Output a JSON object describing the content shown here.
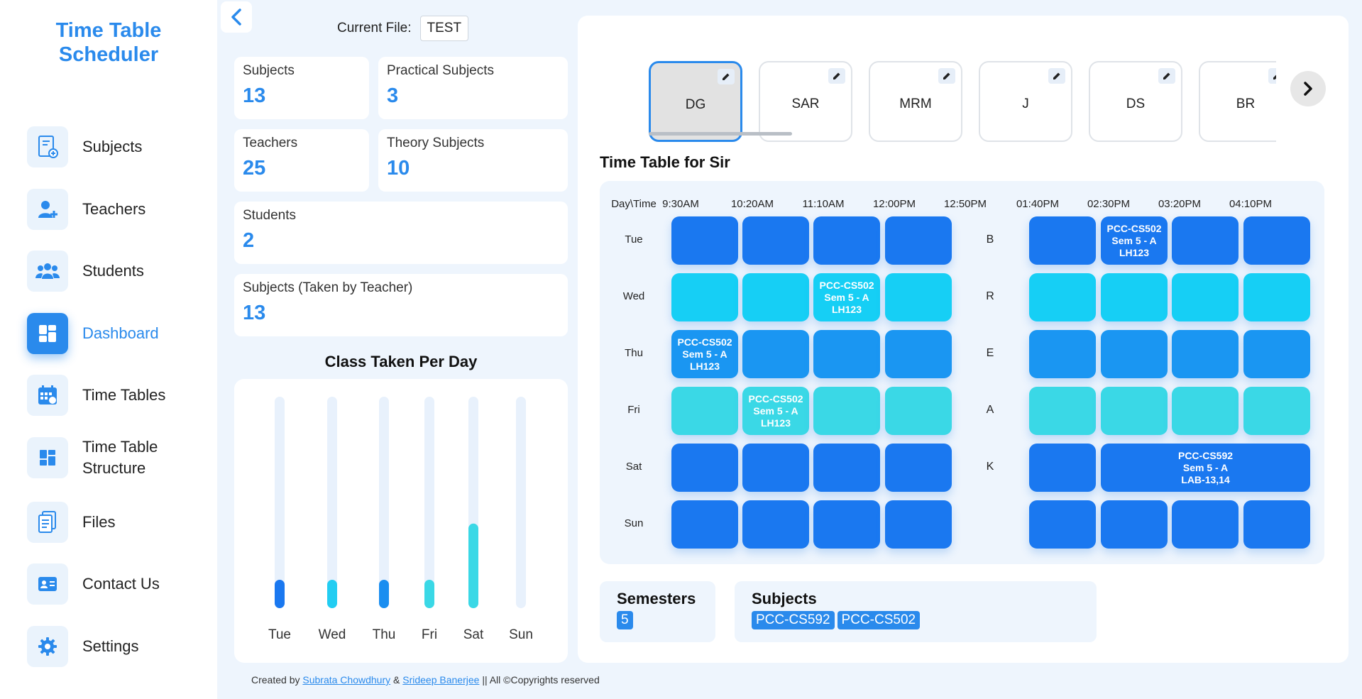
{
  "app": {
    "title_line1": "Time Table",
    "title_line2": "Scheduler"
  },
  "sidebar": {
    "items": [
      {
        "label": "Subjects",
        "icon": "subjects-icon"
      },
      {
        "label": "Teachers",
        "icon": "add-user-icon"
      },
      {
        "label": "Students",
        "icon": "users-icon"
      },
      {
        "label": "Dashboard",
        "icon": "dashboard-icon",
        "active": true
      },
      {
        "label": "Time Tables",
        "icon": "calendar-icon"
      },
      {
        "label": "Time Table\nStructure",
        "label_line1": "Time Table",
        "label_line2": "Structure",
        "icon": "structure-icon"
      },
      {
        "label": "Files",
        "icon": "files-icon"
      },
      {
        "label": "Contact Us",
        "icon": "contact-card-icon"
      },
      {
        "label": "Settings",
        "icon": "gear-icon"
      }
    ]
  },
  "current_file": {
    "label": "Current File:",
    "value": "TEST"
  },
  "stats": {
    "subjects": {
      "label": "Subjects",
      "value": "13"
    },
    "practical": {
      "label": "Practical Subjects",
      "value": "3"
    },
    "teachers": {
      "label": "Teachers",
      "value": "25"
    },
    "theory": {
      "label": "Theory Subjects",
      "value": "10"
    },
    "students": {
      "label": "Students",
      "value": "2"
    },
    "taken": {
      "label": "Subjects (Taken by Teacher)",
      "value": "13"
    }
  },
  "chart_title": "Class Taken Per Day",
  "chart_data": {
    "type": "bar",
    "title": "Class Taken Per Day",
    "categories": [
      "Tue",
      "Wed",
      "Thu",
      "Fri",
      "Sat",
      "Sun"
    ],
    "values": [
      1,
      1,
      1,
      1,
      4,
      0
    ],
    "ylim": [
      0,
      10
    ],
    "colors": [
      "#1a78f0",
      "#22cdf2",
      "#1a8ef0",
      "#3ad8e6",
      "#3ad8e6",
      "#e8f1fc"
    ],
    "grid": false
  },
  "teachers": [
    "DG",
    "SAR",
    "MRM",
    "J",
    "DS",
    "BR"
  ],
  "selected_teacher": "DG",
  "timetable": {
    "heading": "Time Table for Sir",
    "corner": "Day\\Time",
    "times": [
      "9:30AM",
      "10:20AM",
      "11:10AM",
      "12:00PM",
      "12:50PM",
      "01:40PM",
      "02:30PM",
      "03:20PM",
      "04:10PM"
    ],
    "break_letters": [
      "B",
      "R",
      "E",
      "A",
      "K",
      ""
    ],
    "rows": [
      {
        "day": "Tue",
        "color": "#1a78f0",
        "cells": [
          {
            "l1": "",
            "l2": "",
            "l3": ""
          },
          {
            "l1": "",
            "l2": "",
            "l3": ""
          },
          {
            "l1": "",
            "l2": "",
            "l3": ""
          },
          {
            "l1": "",
            "l2": "",
            "l3": ""
          },
          {
            "l1": "",
            "l2": "",
            "l3": ""
          },
          {
            "l1": "PCC-CS502",
            "l2": "Sem 5 - A",
            "l3": "LH123"
          },
          {
            "l1": "",
            "l2": "",
            "l3": ""
          },
          {
            "l1": "",
            "l2": "",
            "l3": ""
          }
        ]
      },
      {
        "day": "Wed",
        "color": "#16cff5",
        "cells": [
          {
            "l1": "",
            "l2": "",
            "l3": ""
          },
          {
            "l1": "",
            "l2": "",
            "l3": ""
          },
          {
            "l1": "PCC-CS502",
            "l2": "Sem 5 - A",
            "l3": "LH123"
          },
          {
            "l1": "",
            "l2": "",
            "l3": ""
          },
          {
            "l1": "",
            "l2": "",
            "l3": ""
          },
          {
            "l1": "",
            "l2": "",
            "l3": ""
          },
          {
            "l1": "",
            "l2": "",
            "l3": ""
          },
          {
            "l1": "",
            "l2": "",
            "l3": ""
          }
        ]
      },
      {
        "day": "Thu",
        "color": "#1a96f2",
        "cells": [
          {
            "l1": "PCC-CS502",
            "l2": "Sem 5 - A",
            "l3": "LH123"
          },
          {
            "l1": "",
            "l2": "",
            "l3": ""
          },
          {
            "l1": "",
            "l2": "",
            "l3": ""
          },
          {
            "l1": "",
            "l2": "",
            "l3": ""
          },
          {
            "l1": "",
            "l2": "",
            "l3": ""
          },
          {
            "l1": "",
            "l2": "",
            "l3": ""
          },
          {
            "l1": "",
            "l2": "",
            "l3": ""
          },
          {
            "l1": "",
            "l2": "",
            "l3": ""
          }
        ]
      },
      {
        "day": "Fri",
        "color": "#3ad8e6",
        "cells": [
          {
            "l1": "",
            "l2": "",
            "l3": ""
          },
          {
            "l1": "PCC-CS502",
            "l2": "Sem 5 - A",
            "l3": "LH123"
          },
          {
            "l1": "",
            "l2": "",
            "l3": ""
          },
          {
            "l1": "",
            "l2": "",
            "l3": ""
          },
          {
            "l1": "",
            "l2": "",
            "l3": ""
          },
          {
            "l1": "",
            "l2": "",
            "l3": ""
          },
          {
            "l1": "",
            "l2": "",
            "l3": ""
          },
          {
            "l1": "",
            "l2": "",
            "l3": ""
          }
        ]
      },
      {
        "day": "Sat",
        "color": "#1a78f0",
        "merged_after_5": {
          "l1": "PCC-CS592",
          "l2": "Sem 5 - A",
          "l3": "LAB-13,14"
        },
        "cells": [
          {
            "l1": "",
            "l2": "",
            "l3": ""
          },
          {
            "l1": "",
            "l2": "",
            "l3": ""
          },
          {
            "l1": "",
            "l2": "",
            "l3": ""
          },
          {
            "l1": "",
            "l2": "",
            "l3": ""
          },
          {
            "l1": "",
            "l2": "",
            "l3": ""
          }
        ]
      },
      {
        "day": "Sun",
        "color": "#1a78f0",
        "cells": [
          {
            "l1": "",
            "l2": "",
            "l3": ""
          },
          {
            "l1": "",
            "l2": "",
            "l3": ""
          },
          {
            "l1": "",
            "l2": "",
            "l3": ""
          },
          {
            "l1": "",
            "l2": "",
            "l3": ""
          },
          {
            "l1": "",
            "l2": "",
            "l3": ""
          },
          {
            "l1": "",
            "l2": "",
            "l3": ""
          },
          {
            "l1": "",
            "l2": "",
            "l3": ""
          },
          {
            "l1": "",
            "l2": "",
            "l3": ""
          }
        ]
      }
    ]
  },
  "semesters": {
    "title": "Semesters",
    "values": [
      "5"
    ]
  },
  "subjects_box": {
    "title": "Subjects",
    "values": [
      "PCC-CS592",
      "PCC-CS502"
    ]
  },
  "footer": {
    "prefix": "Created by",
    "author1": "Subrata Chowdhury",
    "amp": "&",
    "author2": "Srideep Banerjee",
    "suffix": "|| All ©Copyrights reserved"
  }
}
